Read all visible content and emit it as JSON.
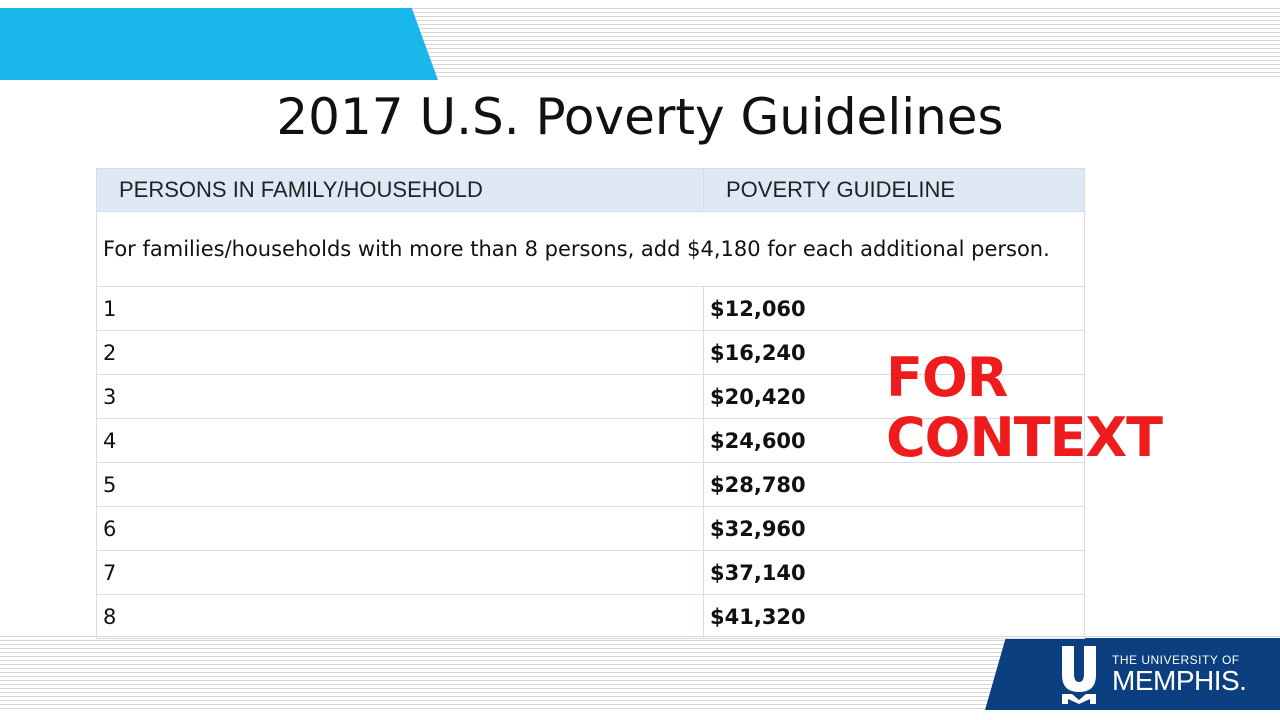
{
  "title": "2017 U.S. Poverty Guidelines",
  "table": {
    "headers": [
      "PERSONS IN FAMILY/HOUSEHOLD",
      "POVERTY GUIDELINE"
    ],
    "note": "For families/households with more than 8 persons, add $4,180 for each additional person.",
    "rows": [
      {
        "persons": "1",
        "guideline": "$12,060"
      },
      {
        "persons": "2",
        "guideline": "$16,240"
      },
      {
        "persons": "3",
        "guideline": "$20,420"
      },
      {
        "persons": "4",
        "guideline": "$24,600"
      },
      {
        "persons": "5",
        "guideline": "$28,780"
      },
      {
        "persons": "6",
        "guideline": "$32,960"
      },
      {
        "persons": "7",
        "guideline": "$37,140"
      },
      {
        "persons": "8",
        "guideline": "$41,320"
      }
    ]
  },
  "overlay": {
    "line1": "FOR",
    "line2": "CONTEXT",
    "color": "#ee1c1c"
  },
  "logo": {
    "line1": "THE UNIVERSITY OF",
    "line2": "MEMPHIS.",
    "mark_icon": "um-logo-icon"
  },
  "colors": {
    "top_banner": "#1ab7ea",
    "bottom_banner": "#0c3f7f",
    "header_fill": "#dfe9f6"
  }
}
